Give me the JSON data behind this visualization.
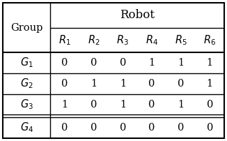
{
  "title": "Robot",
  "col_header_0": "Group",
  "col_headers": [
    "$R_1$",
    "$R_2$",
    "$R_3$",
    "$R_4$",
    "$R_5$",
    "$R_6$"
  ],
  "rows": [
    [
      "$G_1$",
      "0",
      "0",
      "0",
      "1",
      "1",
      "1"
    ],
    [
      "$G_2$",
      "0",
      "1",
      "1",
      "0",
      "0",
      "1"
    ],
    [
      "$G_3$",
      "1",
      "0",
      "1",
      "0",
      "1",
      "0"
    ],
    [
      "$G_4$",
      "0",
      "0",
      "0",
      "0",
      "0",
      "0"
    ]
  ],
  "bg_color": "#ffffff",
  "text_color": "#000000",
  "lw_outer": 1.5,
  "lw_inner": 1.0,
  "lw_header_sep": 1.5,
  "lw_double": 1.0,
  "font_size_title": 12,
  "font_size_header": 10.5,
  "font_size_data": 10.5,
  "fig_width": 3.26,
  "fig_height": 2.02,
  "dpi": 100
}
